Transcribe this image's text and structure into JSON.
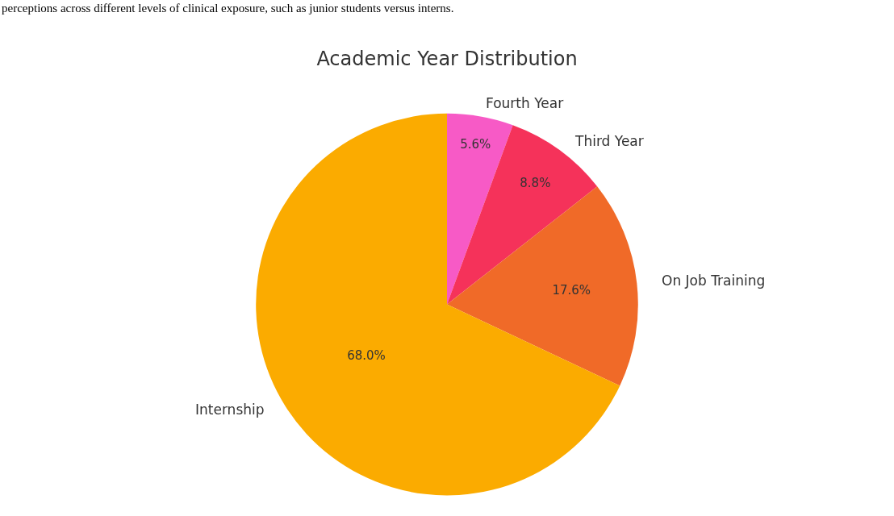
{
  "chart_data": {
    "type": "pie",
    "title": "Academic Year Distribution",
    "annotations": [
      "perceptions across different levels of clinical exposure, such as junior students versus interns."
    ],
    "categories": [
      "Fourth Year",
      "Third Year",
      "On Job Training",
      "Internship"
    ],
    "values": [
      5.6,
      8.8,
      17.6,
      68.0
    ],
    "value_labels": [
      "5.6%",
      "8.8%",
      "17.6%",
      "68.0%"
    ],
    "colors": [
      "#f75ac6",
      "#f5325a",
      "#f06a28",
      "#fbab00"
    ],
    "legend": false
  }
}
